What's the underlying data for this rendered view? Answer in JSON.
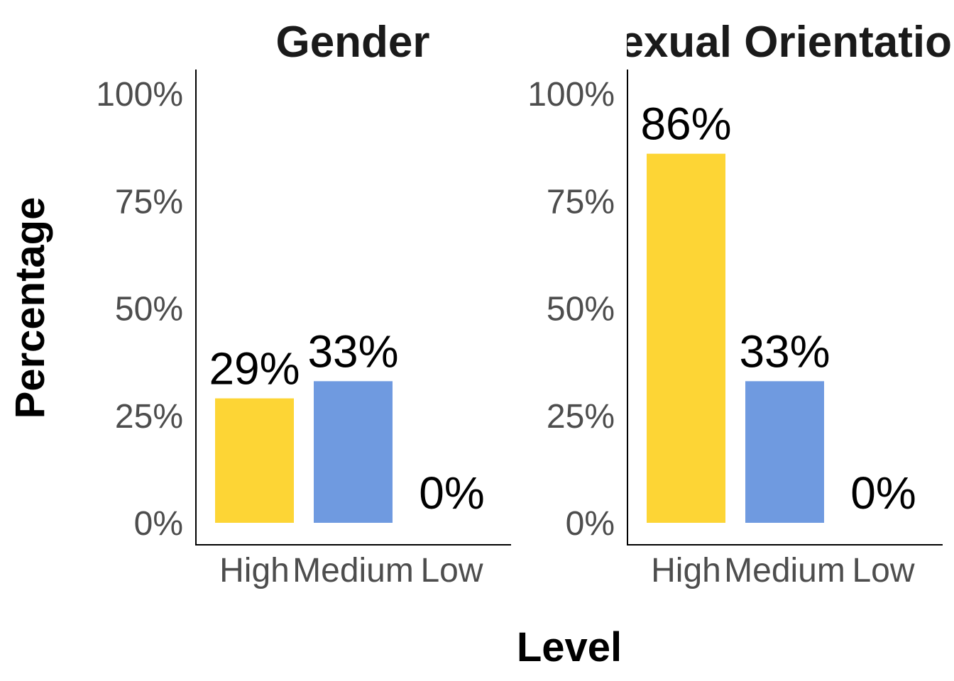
{
  "chart_data": {
    "type": "bar",
    "ylabel": "Percentage",
    "xlabel": "Level",
    "ylim": [
      0,
      100
    ],
    "y_ticks": [
      "0%",
      "25%",
      "50%",
      "75%",
      "100%"
    ],
    "y_tick_values": [
      0,
      25,
      50,
      75,
      100
    ],
    "categories": [
      "High",
      "Medium",
      "Low"
    ],
    "category_colors": [
      "#FDD535",
      "#6F9AE0",
      "#6F9AE0"
    ],
    "grid": false,
    "panels": [
      {
        "title": "Gender",
        "values": [
          29,
          33,
          0
        ],
        "labels": [
          "29%",
          "33%",
          "0%"
        ]
      },
      {
        "title": "Sexual Orientation",
        "values": [
          86,
          33,
          0
        ],
        "labels": [
          "86%",
          "33%",
          "0%"
        ]
      }
    ]
  }
}
